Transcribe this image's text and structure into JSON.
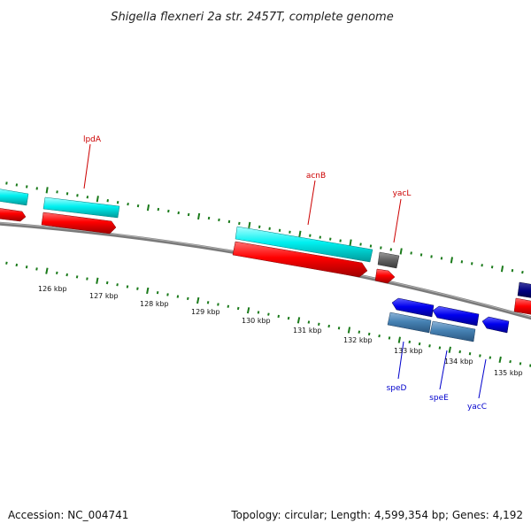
{
  "title": "Shigella flexneri 2a str. 2457T, complete genome",
  "footer": {
    "accession": "Accession: NC_004741",
    "summary": "Topology: circular; Length: 4,599,354 bp; Genes: 4,192"
  },
  "colors": {
    "backbone": "#808080",
    "tick": "#1a7a1a",
    "cds_forward": "#ff0000",
    "gene_forward": "#00ffff",
    "cds_reverse": "#0000ff",
    "gene_reverse": "#4682b4",
    "other": "#606060",
    "label_forward": "#cc0000",
    "label_reverse": "#0000cc"
  },
  "scale": {
    "unit": "kbp",
    "labels": [
      "126 kbp",
      "127 kbp",
      "128 kbp",
      "129 kbp",
      "130 kbp",
      "131 kbp",
      "132 kbp",
      "133 kbp",
      "134 kbp",
      "135 kbp"
    ]
  },
  "genes": [
    {
      "name": "lpdA",
      "strand": "+"
    },
    {
      "name": "acnB",
      "strand": "+"
    },
    {
      "name": "yacL",
      "strand": "+"
    },
    {
      "name": "speD",
      "strand": "-"
    },
    {
      "name": "speE",
      "strand": "-"
    },
    {
      "name": "yacC",
      "strand": "-"
    }
  ]
}
